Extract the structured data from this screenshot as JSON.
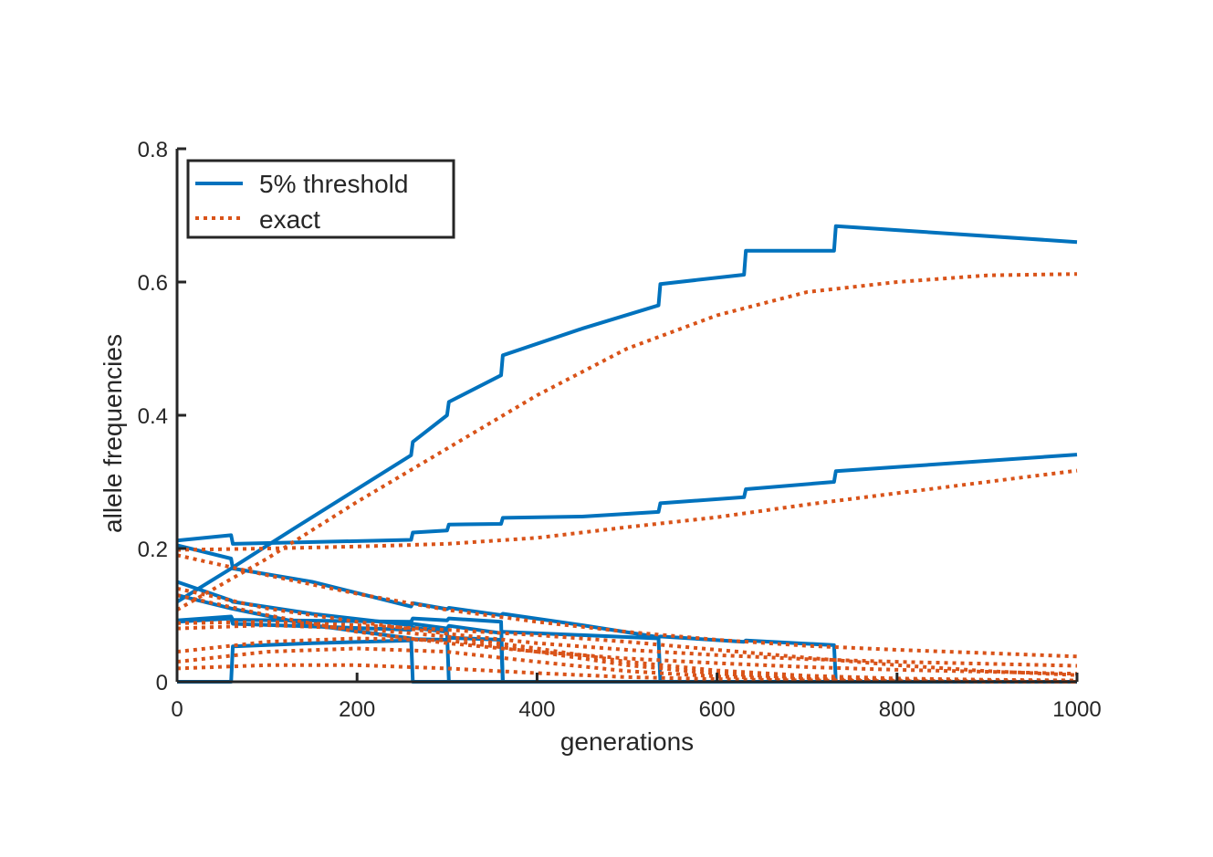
{
  "chart_data": {
    "type": "line",
    "xlabel": "generations",
    "ylabel": "allele frequencies",
    "xlim": [
      0,
      1000
    ],
    "ylim": [
      0,
      0.8
    ],
    "xticks": [
      0,
      200,
      400,
      600,
      800,
      1000
    ],
    "yticks": [
      0,
      0.2,
      0.4,
      0.6,
      0.8
    ],
    "xtick_labels": [
      "0",
      "200",
      "400",
      "600",
      "800",
      "1000"
    ],
    "ytick_labels": [
      "0",
      "0.2",
      "0.4",
      "0.6",
      "0.8"
    ],
    "legend": {
      "position": "top-left",
      "entries": [
        {
          "label": "5% threshold",
          "style": "solid",
          "color": "#0072BD"
        },
        {
          "label": "exact",
          "style": "dotted",
          "color": "#D95319"
        }
      ]
    },
    "colors": {
      "threshold": "#0072BD",
      "exact": "#D95319",
      "axis": "#262626"
    },
    "series": [
      {
        "group": "threshold",
        "points": [
          [
            0,
            0.12
          ],
          [
            60,
            0.17
          ],
          [
            130,
            0.23
          ],
          [
            260,
            0.34
          ],
          [
            262,
            0.36
          ],
          [
            300,
            0.4
          ],
          [
            302,
            0.42
          ],
          [
            360,
            0.46
          ],
          [
            362,
            0.49
          ],
          [
            450,
            0.53
          ],
          [
            535,
            0.565
          ],
          [
            537,
            0.597
          ],
          [
            630,
            0.611
          ],
          [
            632,
            0.647
          ],
          [
            730,
            0.647
          ],
          [
            732,
            0.684
          ],
          [
            1000,
            0.66
          ]
        ]
      },
      {
        "group": "threshold",
        "points": [
          [
            0,
            0.212
          ],
          [
            60,
            0.22
          ],
          [
            62,
            0.207
          ],
          [
            260,
            0.213
          ],
          [
            262,
            0.224
          ],
          [
            300,
            0.227
          ],
          [
            302,
            0.236
          ],
          [
            360,
            0.237
          ],
          [
            362,
            0.246
          ],
          [
            450,
            0.248
          ],
          [
            535,
            0.255
          ],
          [
            537,
            0.268
          ],
          [
            630,
            0.277
          ],
          [
            632,
            0.289
          ],
          [
            730,
            0.3
          ],
          [
            732,
            0.316
          ],
          [
            1000,
            0.341
          ]
        ]
      },
      {
        "group": "threshold",
        "points": [
          [
            0,
            0.205
          ],
          [
            60,
            0.185
          ],
          [
            62,
            0.17
          ],
          [
            150,
            0.15
          ],
          [
            260,
            0.113
          ],
          [
            262,
            0.118
          ],
          [
            300,
            0.109
          ],
          [
            302,
            0.111
          ],
          [
            360,
            0.1
          ],
          [
            362,
            0.102
          ],
          [
            450,
            0.085
          ],
          [
            535,
            0.067
          ],
          [
            537,
            0.068
          ],
          [
            630,
            0.06
          ],
          [
            632,
            0.062
          ],
          [
            730,
            0.055
          ],
          [
            732,
            0.0
          ],
          [
            1000,
            0.0
          ]
        ]
      },
      {
        "group": "threshold",
        "points": [
          [
            0,
            0.15
          ],
          [
            60,
            0.122
          ],
          [
            62,
            0.12
          ],
          [
            150,
            0.102
          ],
          [
            260,
            0.085
          ],
          [
            262,
            0.087
          ],
          [
            300,
            0.08
          ],
          [
            302,
            0.084
          ],
          [
            360,
            0.073
          ],
          [
            362,
            0.075
          ],
          [
            450,
            0.07
          ],
          [
            535,
            0.065
          ],
          [
            537,
            0.0
          ],
          [
            1000,
            0.0
          ]
        ]
      },
      {
        "group": "threshold",
        "points": [
          [
            0,
            0.092
          ],
          [
            60,
            0.098
          ],
          [
            62,
            0.093
          ],
          [
            260,
            0.09
          ],
          [
            262,
            0.095
          ],
          [
            300,
            0.092
          ],
          [
            302,
            0.095
          ],
          [
            360,
            0.09
          ],
          [
            362,
            0.0
          ],
          [
            1000,
            0.0
          ]
        ]
      },
      {
        "group": "threshold",
        "points": [
          [
            0,
            0.09
          ],
          [
            60,
            0.095
          ],
          [
            62,
            0.087
          ],
          [
            260,
            0.078
          ],
          [
            262,
            0.081
          ],
          [
            300,
            0.075
          ],
          [
            302,
            0.0
          ],
          [
            1000,
            0.0
          ]
        ]
      },
      {
        "group": "threshold",
        "points": [
          [
            0,
            0.13
          ],
          [
            60,
            0.11
          ],
          [
            150,
            0.085
          ],
          [
            260,
            0.065
          ],
          [
            262,
            0.0
          ],
          [
            1000,
            0.0
          ]
        ]
      },
      {
        "group": "threshold",
        "points": [
          [
            0,
            0.0
          ],
          [
            60,
            0.0
          ],
          [
            62,
            0.053
          ],
          [
            150,
            0.058
          ],
          [
            260,
            0.062
          ],
          [
            262,
            0.064
          ],
          [
            300,
            0.063
          ],
          [
            302,
            0.066
          ],
          [
            360,
            0.063
          ],
          [
            362,
            0.0
          ],
          [
            1000,
            0.0
          ]
        ]
      },
      {
        "group": "exact",
        "points": [
          [
            0,
            0.108
          ],
          [
            100,
            0.185
          ],
          [
            200,
            0.27
          ],
          [
            300,
            0.35
          ],
          [
            400,
            0.43
          ],
          [
            500,
            0.5
          ],
          [
            600,
            0.55
          ],
          [
            700,
            0.585
          ],
          [
            800,
            0.6
          ],
          [
            900,
            0.61
          ],
          [
            1000,
            0.612
          ]
        ]
      },
      {
        "group": "exact",
        "points": [
          [
            0,
            0.198
          ],
          [
            100,
            0.2
          ],
          [
            200,
            0.203
          ],
          [
            300,
            0.207
          ],
          [
            400,
            0.216
          ],
          [
            500,
            0.232
          ],
          [
            600,
            0.247
          ],
          [
            700,
            0.266
          ],
          [
            800,
            0.283
          ],
          [
            900,
            0.3
          ],
          [
            1000,
            0.317
          ]
        ]
      },
      {
        "group": "exact",
        "points": [
          [
            0,
            0.19
          ],
          [
            100,
            0.16
          ],
          [
            200,
            0.132
          ],
          [
            300,
            0.108
          ],
          [
            400,
            0.09
          ],
          [
            500,
            0.075
          ],
          [
            600,
            0.063
          ],
          [
            700,
            0.054
          ],
          [
            800,
            0.048
          ],
          [
            900,
            0.043
          ],
          [
            1000,
            0.038
          ]
        ]
      },
      {
        "group": "exact",
        "points": [
          [
            0,
            0.14
          ],
          [
            100,
            0.11
          ],
          [
            200,
            0.09
          ],
          [
            300,
            0.072
          ],
          [
            400,
            0.058
          ],
          [
            500,
            0.048
          ],
          [
            600,
            0.04
          ],
          [
            700,
            0.034
          ],
          [
            800,
            0.03
          ],
          [
            900,
            0.027
          ],
          [
            1000,
            0.024
          ]
        ]
      },
      {
        "group": "exact",
        "points": [
          [
            0,
            0.13
          ],
          [
            100,
            0.1
          ],
          [
            200,
            0.075
          ],
          [
            300,
            0.058
          ],
          [
            400,
            0.045
          ],
          [
            500,
            0.035
          ],
          [
            600,
            0.028
          ],
          [
            700,
            0.022
          ],
          [
            800,
            0.018
          ],
          [
            900,
            0.015
          ],
          [
            1000,
            0.012
          ]
        ]
      },
      {
        "group": "exact",
        "points": [
          [
            0,
            0.088
          ],
          [
            100,
            0.09
          ],
          [
            200,
            0.085
          ],
          [
            300,
            0.078
          ],
          [
            400,
            0.07
          ],
          [
            500,
            0.06
          ],
          [
            600,
            0.048
          ],
          [
            700,
            0.036
          ],
          [
            800,
            0.025
          ],
          [
            900,
            0.016
          ],
          [
            1000,
            0.01
          ]
        ]
      },
      {
        "group": "exact",
        "points": [
          [
            0,
            0.08
          ],
          [
            100,
            0.085
          ],
          [
            200,
            0.08
          ],
          [
            300,
            0.068
          ],
          [
            400,
            0.05
          ],
          [
            500,
            0.03
          ],
          [
            600,
            0.017
          ],
          [
            700,
            0.009
          ],
          [
            800,
            0.005
          ],
          [
            900,
            0.003
          ],
          [
            1000,
            0.002
          ]
        ]
      },
      {
        "group": "exact",
        "points": [
          [
            0,
            0.045
          ],
          [
            100,
            0.06
          ],
          [
            200,
            0.065
          ],
          [
            300,
            0.062
          ],
          [
            400,
            0.045
          ],
          [
            500,
            0.025
          ],
          [
            600,
            0.012
          ],
          [
            700,
            0.006
          ],
          [
            800,
            0.003
          ],
          [
            900,
            0.002
          ],
          [
            1000,
            0.001
          ]
        ]
      },
      {
        "group": "exact",
        "points": [
          [
            0,
            0.03
          ],
          [
            100,
            0.045
          ],
          [
            200,
            0.05
          ],
          [
            300,
            0.045
          ],
          [
            400,
            0.03
          ],
          [
            500,
            0.016
          ],
          [
            600,
            0.008
          ],
          [
            700,
            0.004
          ],
          [
            800,
            0.002
          ],
          [
            900,
            0.001
          ],
          [
            1000,
            0.0
          ]
        ]
      },
      {
        "group": "exact",
        "points": [
          [
            0,
            0.02
          ],
          [
            100,
            0.025
          ],
          [
            200,
            0.025
          ],
          [
            300,
            0.02
          ],
          [
            400,
            0.013
          ],
          [
            500,
            0.007
          ],
          [
            600,
            0.004
          ],
          [
            700,
            0.002
          ],
          [
            800,
            0.001
          ],
          [
            900,
            0.0
          ],
          [
            1000,
            0.0
          ]
        ]
      }
    ]
  }
}
